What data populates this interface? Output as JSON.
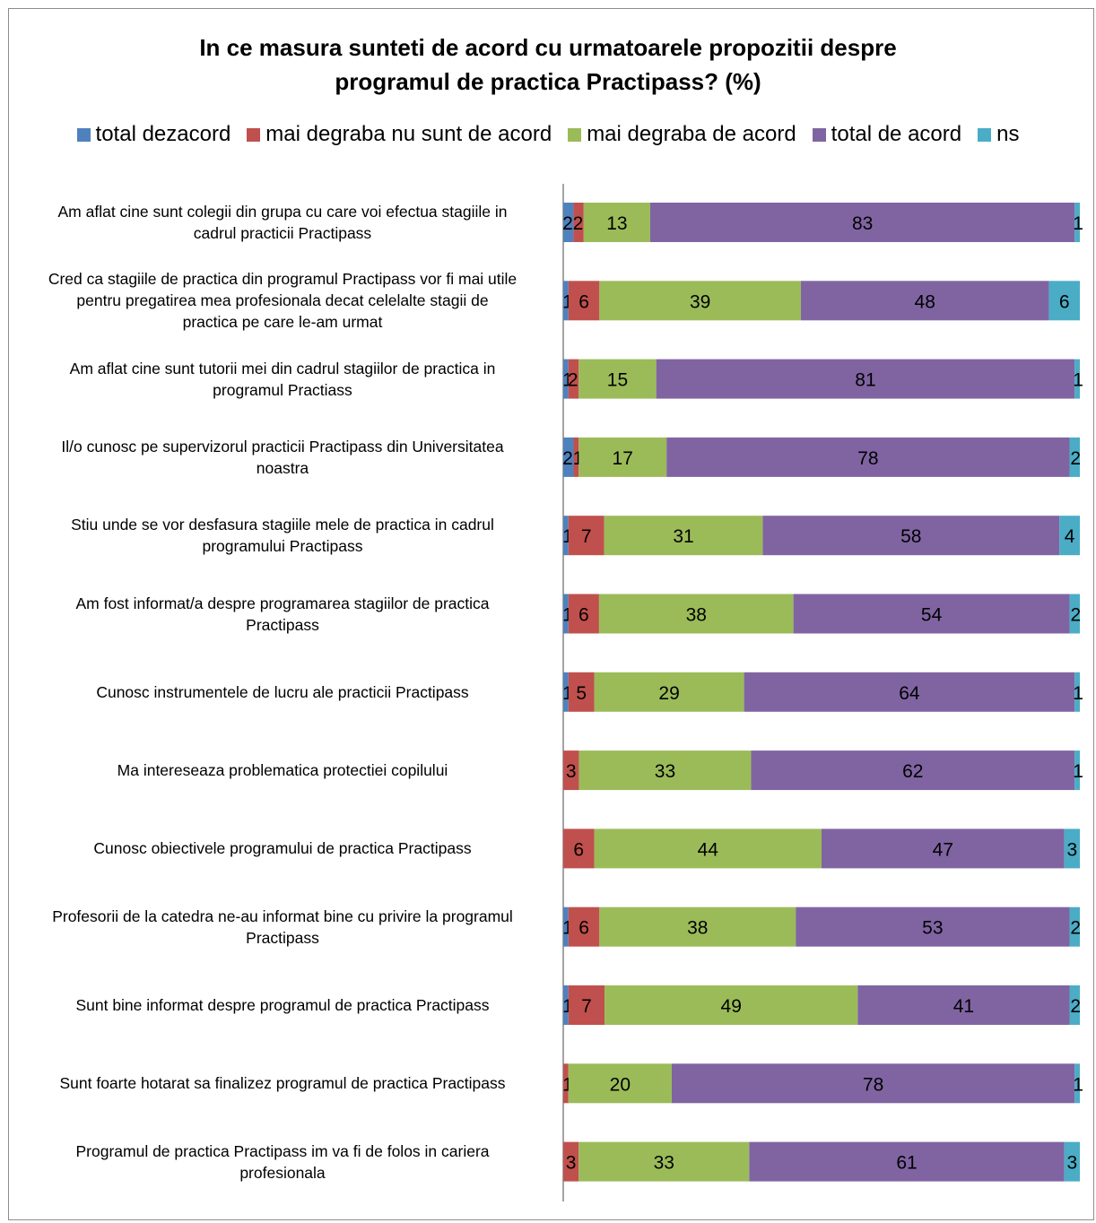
{
  "chart_data": {
    "type": "bar",
    "orientation": "horizontal",
    "stacked": "percent",
    "title": "In ce masura sunteti de acord cu urmatoarele propozitii despre programul de practica Practipass? (%)",
    "title_lines": [
      "In ce masura sunteti de acord cu urmatoarele propozitii despre",
      "programul de practica Practipass? (%)"
    ],
    "legend_position": "top",
    "categories": [
      "Am aflat cine sunt colegii din grupa cu care voi efectua stagiile in cadrul practicii Practipass",
      "Cred ca stagiile de practica din programul Practipass vor fi mai utile pentru pregatirea mea profesionala decat celelalte stagii de practica pe care le-am urmat",
      "Am aflat cine sunt tutorii mei din cadrul stagiilor de practica in programul Practiass",
      "Il/o cunosc pe supervizorul practicii Practipass din Universitatea noastra",
      "Stiu unde se vor desfasura stagiile mele de practica in cadrul programului Practipass",
      "Am fost informat/a despre programarea stagiilor de practica Practipass",
      "Cunosc instrumentele de lucru ale practicii Practipass",
      "Ma intereseaza problematica protectiei copilului",
      "Cunosc obiectivele programului de practica Practipass",
      "Profesorii de la catedra ne-au informat bine cu privire la programul Practipass",
      "Sunt bine informat despre programul de practica Practipass",
      "Sunt foarte hotarat sa finalizez programul de practica Practipass",
      "Programul de practica Practipass im va fi de folos in cariera profesionala"
    ],
    "category_lines": [
      [
        "Am aflat cine sunt colegii din grupa cu care voi efectua stagiile in",
        "cadrul practicii Practipass"
      ],
      [
        "Cred ca stagiile de practica din programul Practipass vor fi mai utile",
        "pentru pregatirea mea profesionala decat celelalte stagii de",
        "practica pe care le-am urmat"
      ],
      [
        "Am aflat cine sunt tutorii mei din cadrul stagiilor de practica in",
        "programul Practiass"
      ],
      [
        "Il/o cunosc pe supervizorul practicii Practipass din Universitatea",
        "noastra"
      ],
      [
        "Stiu unde se vor desfasura stagiile mele de practica in cadrul",
        "programului Practipass"
      ],
      [
        "Am fost informat/a despre programarea stagiilor de practica",
        "Practipass"
      ],
      [
        "Cunosc instrumentele de lucru ale practicii Practipass"
      ],
      [
        "Ma intereseaza problematica protectiei copilului"
      ],
      [
        "Cunosc obiectivele programului de practica Practipass"
      ],
      [
        "Profesorii de la catedra ne-au informat bine cu privire la programul",
        "Practipass"
      ],
      [
        "Sunt bine informat despre programul de practica Practipass"
      ],
      [
        "Sunt foarte hotarat sa finalizez programul de practica Practipass"
      ],
      [
        "Programul de practica Practipass im va fi de folos in cariera",
        "profesionala"
      ]
    ],
    "series": [
      {
        "name": "total dezacord",
        "color": "#4f81bd",
        "values": [
          2,
          1,
          1,
          2,
          1,
          1,
          1,
          0,
          0,
          1,
          1,
          0,
          0
        ]
      },
      {
        "name": "mai degraba nu sunt de acord",
        "color": "#c0504d",
        "values": [
          2,
          6,
          2,
          1,
          7,
          6,
          5,
          3,
          6,
          6,
          7,
          1,
          3
        ]
      },
      {
        "name": "mai degraba de acord",
        "color": "#9bbb59",
        "values": [
          13,
          39,
          15,
          17,
          31,
          38,
          29,
          33,
          44,
          38,
          49,
          20,
          33
        ]
      },
      {
        "name": "total de acord",
        "color": "#8064a2",
        "values": [
          83,
          48,
          81,
          78,
          58,
          54,
          64,
          62,
          47,
          53,
          41,
          78,
          61
        ]
      },
      {
        "name": "ns",
        "color": "#4bacc6",
        "values": [
          1,
          6,
          1,
          2,
          4,
          2,
          1,
          1,
          3,
          2,
          2,
          1,
          3
        ]
      }
    ],
    "grid": false,
    "axis_line_color": "#868686"
  }
}
